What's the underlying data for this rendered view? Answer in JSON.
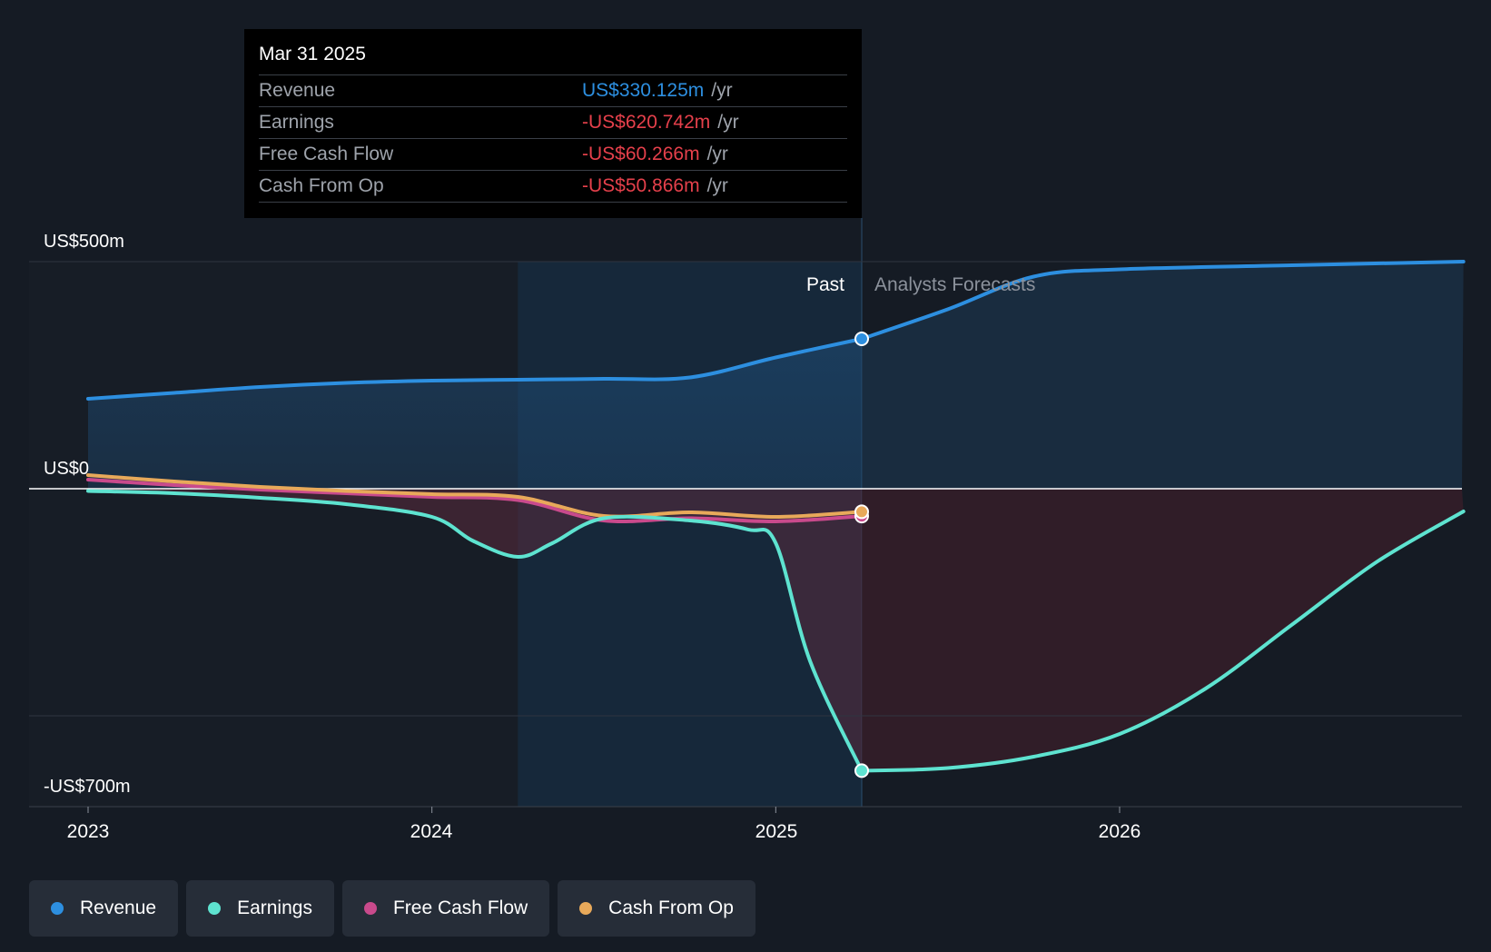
{
  "tooltip": {
    "date": "Mar 31 2025",
    "rows": [
      {
        "label": "Revenue",
        "value": "US$330.125m",
        "unit": "/yr",
        "color": "#2d8fe0"
      },
      {
        "label": "Earnings",
        "value": "-US$620.742m",
        "unit": "/yr",
        "color": "#e5404b"
      },
      {
        "label": "Free Cash Flow",
        "value": "-US$60.266m",
        "unit": "/yr",
        "color": "#e5404b"
      },
      {
        "label": "Cash From Op",
        "value": "-US$50.866m",
        "unit": "/yr",
        "color": "#e5404b"
      }
    ]
  },
  "legend": [
    {
      "label": "Revenue",
      "color": "#2d8fe0"
    },
    {
      "label": "Earnings",
      "color": "#5ee3d0"
    },
    {
      "label": "Free Cash Flow",
      "color": "#c94a8c"
    },
    {
      "label": "Cash From Op",
      "color": "#e8a95a"
    }
  ],
  "chart_data": {
    "type": "line",
    "y_axis_labels": [
      "US$500m",
      "US$0",
      "-US$700m"
    ],
    "x_tick_labels": [
      "2023",
      "2024",
      "2025",
      "2026"
    ],
    "ylim": [
      -700,
      500
    ],
    "xlim": [
      2022.83,
      2027.0
    ],
    "x_ticks": [
      2023,
      2024,
      2025,
      2026
    ],
    "grid_y": [
      500,
      0,
      -500
    ],
    "past_label": "Past",
    "forecast_label": "Analysts Forecasts",
    "past_end_x": 2025.25,
    "shade_start_x": 2024.25,
    "series": [
      {
        "name": "Revenue",
        "color": "#2d8fe0",
        "x": [
          2023.0,
          2023.25,
          2023.5,
          2023.75,
          2024.0,
          2024.25,
          2024.5,
          2024.75,
          2025.0,
          2025.25
        ],
        "y": [
          198,
          211,
          224,
          233,
          238,
          240,
          242,
          245,
          289,
          330
        ]
      },
      {
        "name": "Revenue Forecast",
        "color": "#2d8fe0",
        "x": [
          2025.25,
          2025.5,
          2025.75,
          2026.0,
          2026.5,
          2027.0
        ],
        "y": [
          330,
          395,
          467,
          483,
          492,
          500
        ]
      },
      {
        "name": "Earnings",
        "color": "#5ee3d0",
        "x": [
          2023.0,
          2023.25,
          2023.5,
          2023.75,
          2024.0,
          2024.12,
          2024.25,
          2024.35,
          2024.5,
          2024.75,
          2024.92,
          2025.0,
          2025.1,
          2025.25
        ],
        "y": [
          -5,
          -10,
          -20,
          -34,
          -62,
          -115,
          -150,
          -120,
          -65,
          -70,
          -90,
          -120,
          -380,
          -620.742
        ]
      },
      {
        "name": "Earnings Forecast",
        "color": "#5ee3d0",
        "x": [
          2025.25,
          2025.5,
          2025.75,
          2026.0,
          2026.25,
          2026.5,
          2026.75,
          2027.0
        ],
        "y": [
          -620.742,
          -615,
          -590,
          -540,
          -440,
          -300,
          -160,
          -50
        ]
      },
      {
        "name": "Free Cash Flow",
        "color": "#c94a8c",
        "x": [
          2023.0,
          2023.25,
          2023.5,
          2023.75,
          2024.0,
          2024.25,
          2024.5,
          2024.75,
          2025.0,
          2025.25
        ],
        "y": [
          20,
          8,
          -2,
          -10,
          -18,
          -25,
          -70,
          -65,
          -72,
          -60.266
        ]
      },
      {
        "name": "Cash From Op",
        "color": "#e8a95a",
        "x": [
          2023.0,
          2023.25,
          2023.5,
          2023.75,
          2024.0,
          2024.25,
          2024.5,
          2024.75,
          2025.0,
          2025.25
        ],
        "y": [
          30,
          16,
          4,
          -5,
          -12,
          -18,
          -60,
          -52,
          -62,
          -50.866
        ]
      }
    ]
  }
}
